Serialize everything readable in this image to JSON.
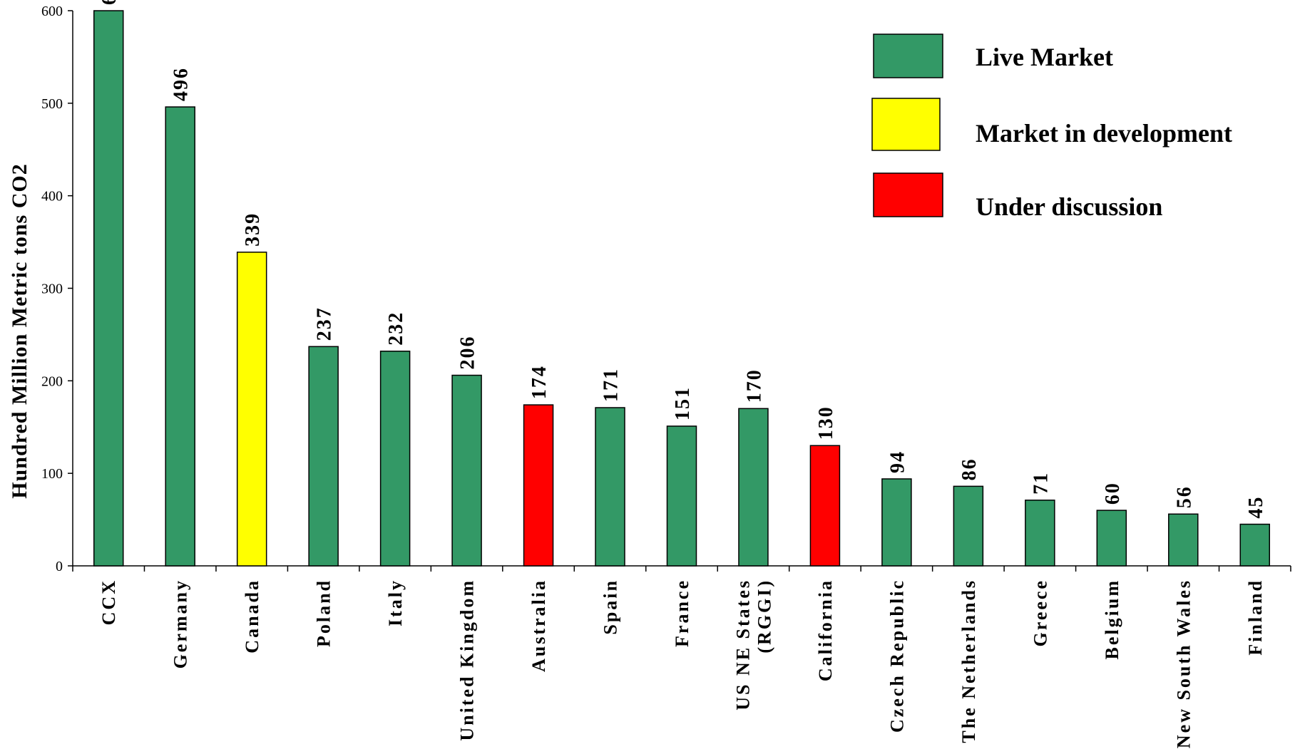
{
  "chart_data": {
    "type": "bar",
    "ylabel": "Hundred Million Metric tons CO2",
    "ylim": [
      0,
      600
    ],
    "yticks": [
      0,
      100,
      200,
      300,
      400,
      500,
      600
    ],
    "categories": [
      [
        "CCX"
      ],
      [
        "Germany"
      ],
      [
        "Canada"
      ],
      [
        "Poland"
      ],
      [
        "Italy"
      ],
      [
        "United Kingdom"
      ],
      [
        "Australia"
      ],
      [
        "Spain"
      ],
      [
        "France"
      ],
      [
        "US NE States",
        "(RGGI)"
      ],
      [
        "California"
      ],
      [
        "Czech Republic"
      ],
      [
        "The Netherlands"
      ],
      [
        "Greece"
      ],
      [
        "Belgium"
      ],
      [
        "New South Wales"
      ],
      [
        "Finland"
      ]
    ],
    "values": [
      600,
      496,
      339,
      237,
      232,
      206,
      174,
      171,
      151,
      170,
      130,
      94,
      86,
      71,
      60,
      56,
      45
    ],
    "status": [
      "live",
      "live",
      "development",
      "live",
      "live",
      "live",
      "discussion",
      "live",
      "live",
      "live",
      "discussion",
      "live",
      "live",
      "live",
      "live",
      "live",
      "live"
    ],
    "legend": [
      {
        "key": "live",
        "label": "Live Market",
        "color": "#339966"
      },
      {
        "key": "development",
        "label": "Market in development",
        "color": "#ffff00"
      },
      {
        "key": "discussion",
        "label": "Under discussion",
        "color": "#ff0000"
      }
    ],
    "legend_position": "top-right",
    "grid": false
  }
}
